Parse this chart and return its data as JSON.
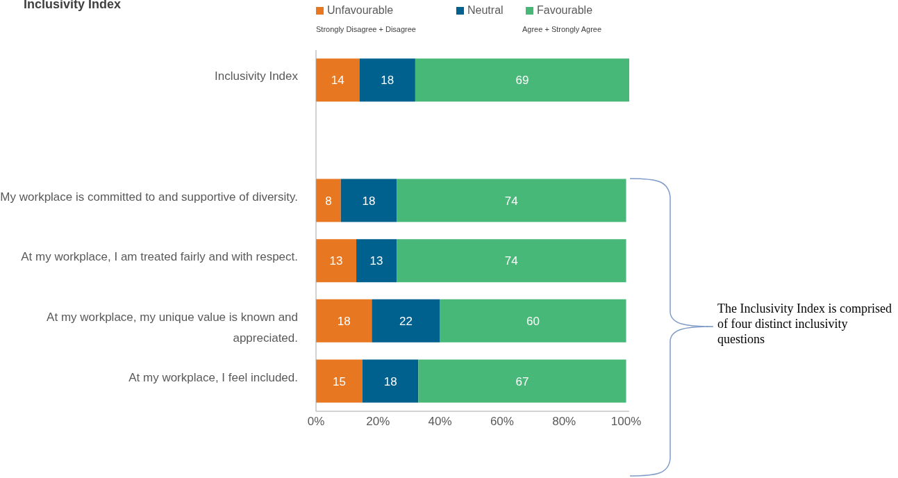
{
  "chart_data": {
    "type": "bar",
    "orientation": "horizontal",
    "stacked": true,
    "title": "Inclusivity Index",
    "categories": [
      "Inclusivity Index",
      null,
      "My workplace is committed to and supportive of diversity.",
      "At my workplace, I am treated fairly and with respect.",
      "At my workplace, my unique value is known and appreciated.",
      "At my workplace, I feel included."
    ],
    "series": [
      {
        "name": "Unfavourable",
        "color": "#e87722",
        "values": [
          14,
          null,
          8,
          13,
          18,
          15
        ]
      },
      {
        "name": "Neutral",
        "color": "#00618f",
        "values": [
          18,
          null,
          18,
          13,
          22,
          18
        ]
      },
      {
        "name": "Favourable",
        "color": "#48b878",
        "values": [
          69,
          null,
          74,
          74,
          60,
          67
        ]
      }
    ],
    "xlim": [
      0,
      101
    ],
    "xticks": [
      {
        "value": 0,
        "label": "0%"
      },
      {
        "value": 20,
        "label": "20%"
      },
      {
        "value": 40,
        "label": "40%"
      },
      {
        "value": 60,
        "label": "60%"
      },
      {
        "value": 80,
        "label": "80%"
      },
      {
        "value": 100,
        "label": "100%"
      }
    ],
    "data_labels": true,
    "legend": "top",
    "grid": false,
    "annotations": [
      "Strongly Disagree + Disagree",
      "Agree + Strongly Agree",
      "The Inclusivity Index is comprised of four distinct inclusivity questions"
    ]
  }
}
